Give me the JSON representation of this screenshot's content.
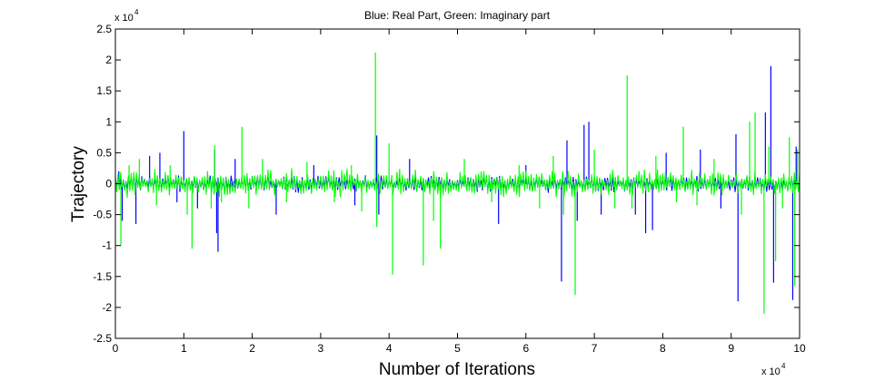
{
  "chart_data": {
    "type": "line",
    "title": "Blue: Real Part, Green: Imaginary part",
    "xlabel": "Number of Iterations",
    "ylabel": "Trajectory",
    "x_multiplier": {
      "base": "x 10",
      "exponent": "4"
    },
    "y_multiplier": {
      "base": "x 10",
      "exponent": "4"
    },
    "xlim": [
      0,
      10
    ],
    "ylim": [
      -2.5,
      2.5
    ],
    "x_ticks": [
      0,
      1,
      2,
      3,
      4,
      5,
      6,
      7,
      8,
      9,
      10
    ],
    "x_tick_labels": [
      "0",
      "1",
      "2",
      "3",
      "4",
      "5",
      "6",
      "7",
      "8",
      "9",
      "10"
    ],
    "y_ticks": [
      -2.5,
      -2,
      -1.5,
      -1,
      -0.5,
      0,
      0.5,
      1,
      1.5,
      2,
      2.5
    ],
    "y_tick_labels": [
      "-2.5",
      "-2",
      "-1.5",
      "-1",
      "-0.5",
      "0",
      "0.5",
      "1",
      "1.5",
      "2",
      "2.5"
    ],
    "grid": false,
    "series": [
      {
        "name": "Real Part",
        "color": "#0000ff",
        "spikes": [
          [
            0.05,
            0.2
          ],
          [
            0.1,
            -0.6
          ],
          [
            0.3,
            -0.65
          ],
          [
            0.5,
            0.45
          ],
          [
            0.65,
            0.5
          ],
          [
            0.9,
            -0.3
          ],
          [
            1.0,
            0.85
          ],
          [
            1.2,
            -0.4
          ],
          [
            1.45,
            0.55
          ],
          [
            1.48,
            -0.8
          ],
          [
            1.5,
            -1.1
          ],
          [
            1.75,
            0.4
          ],
          [
            2.35,
            -0.5
          ],
          [
            2.9,
            0.3
          ],
          [
            3.5,
            -0.35
          ],
          [
            3.82,
            0.78
          ],
          [
            3.85,
            -0.5
          ],
          [
            4.3,
            0.4
          ],
          [
            5.6,
            -0.65
          ],
          [
            6.0,
            0.3
          ],
          [
            6.52,
            -1.58
          ],
          [
            6.6,
            0.7
          ],
          [
            6.75,
            -0.6
          ],
          [
            6.85,
            0.95
          ],
          [
            6.92,
            1.0
          ],
          [
            7.1,
            -0.5
          ],
          [
            7.6,
            -0.5
          ],
          [
            7.75,
            -0.8
          ],
          [
            7.85,
            -0.75
          ],
          [
            8.05,
            0.5
          ],
          [
            8.55,
            0.55
          ],
          [
            8.85,
            -0.4
          ],
          [
            9.07,
            0.8
          ],
          [
            9.1,
            -1.9
          ],
          [
            9.5,
            1.15
          ],
          [
            9.58,
            1.9
          ],
          [
            9.62,
            -1.6
          ],
          [
            9.9,
            -1.88
          ],
          [
            9.95,
            0.6
          ]
        ]
      },
      {
        "name": "Imaginary part",
        "color": "#00ff00",
        "spikes": [
          [
            0.08,
            -1.0
          ],
          [
            0.2,
            0.3
          ],
          [
            0.35,
            0.4
          ],
          [
            0.6,
            -0.35
          ],
          [
            0.8,
            0.3
          ],
          [
            1.05,
            -0.5
          ],
          [
            1.12,
            -1.05
          ],
          [
            1.4,
            -0.4
          ],
          [
            1.45,
            0.62
          ],
          [
            1.55,
            -0.3
          ],
          [
            1.85,
            0.92
          ],
          [
            1.95,
            -0.4
          ],
          [
            2.15,
            0.4
          ],
          [
            2.5,
            -0.3
          ],
          [
            2.8,
            0.35
          ],
          [
            3.2,
            -0.3
          ],
          [
            3.45,
            0.3
          ],
          [
            3.6,
            -0.45
          ],
          [
            3.8,
            2.12
          ],
          [
            3.82,
            -0.7
          ],
          [
            4.0,
            0.65
          ],
          [
            4.05,
            -1.47
          ],
          [
            4.5,
            -1.32
          ],
          [
            4.65,
            -0.6
          ],
          [
            4.75,
            -1.05
          ],
          [
            5.1,
            0.4
          ],
          [
            5.5,
            -0.3
          ],
          [
            5.9,
            0.3
          ],
          [
            6.2,
            -0.4
          ],
          [
            6.4,
            0.45
          ],
          [
            6.55,
            -0.5
          ],
          [
            6.72,
            -1.8
          ],
          [
            7.0,
            0.55
          ],
          [
            7.3,
            -0.4
          ],
          [
            7.48,
            1.75
          ],
          [
            7.55,
            -0.4
          ],
          [
            7.9,
            0.45
          ],
          [
            8.2,
            -0.3
          ],
          [
            8.3,
            0.92
          ],
          [
            8.5,
            -0.35
          ],
          [
            8.75,
            0.4
          ],
          [
            9.15,
            -0.5
          ],
          [
            9.27,
            1.0
          ],
          [
            9.35,
            1.15
          ],
          [
            9.48,
            -2.1
          ],
          [
            9.55,
            0.6
          ],
          [
            9.65,
            -1.25
          ],
          [
            9.75,
            -0.4
          ],
          [
            9.85,
            0.75
          ],
          [
            9.93,
            -1.65
          ],
          [
            9.97,
            0.55
          ]
        ]
      }
    ]
  }
}
